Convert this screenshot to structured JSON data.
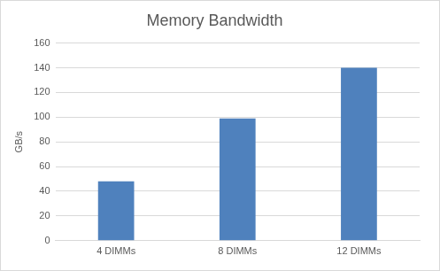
{
  "chart_data": {
    "type": "bar",
    "title": "Memory Bandwidth",
    "y_label": "GB/s",
    "categories": [
      "4 DIMMs",
      "8 DIMMs",
      "12 DIMMs"
    ],
    "values": [
      48,
      99,
      140
    ],
    "color": "#4f81bd",
    "ylim": [
      0,
      160
    ],
    "yticks": [
      0,
      20,
      40,
      60,
      80,
      100,
      120,
      140,
      160
    ],
    "grid": true
  }
}
